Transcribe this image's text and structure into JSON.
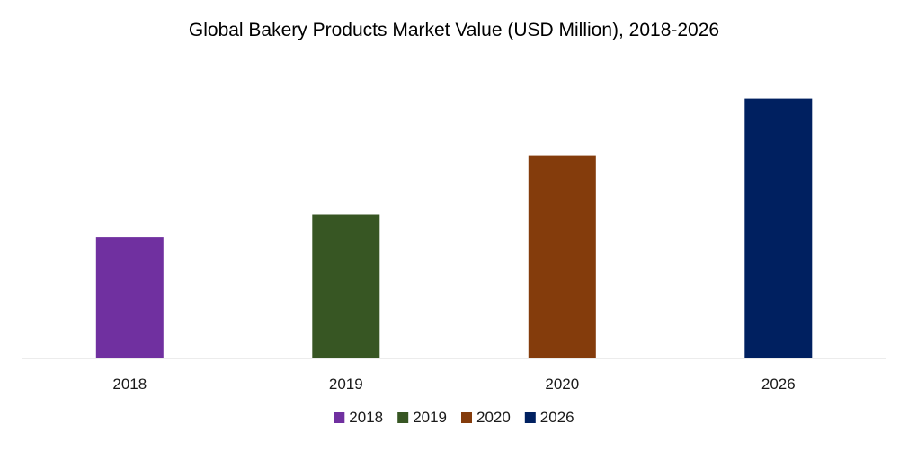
{
  "chart_data": {
    "type": "bar",
    "title": "Global Bakery Products Market Value (USD Million), 2018-2026",
    "categories": [
      "2018",
      "2019",
      "2020",
      "2026"
    ],
    "values": [
      137,
      163,
      229,
      294
    ],
    "colors": [
      "#7030a0",
      "#375623",
      "#843c0c",
      "#002060"
    ],
    "ylim": [
      0,
      320
    ],
    "grid": false,
    "legend": {
      "position": "bottom",
      "entries": [
        "2018",
        "2019",
        "2020",
        "2026"
      ]
    }
  }
}
